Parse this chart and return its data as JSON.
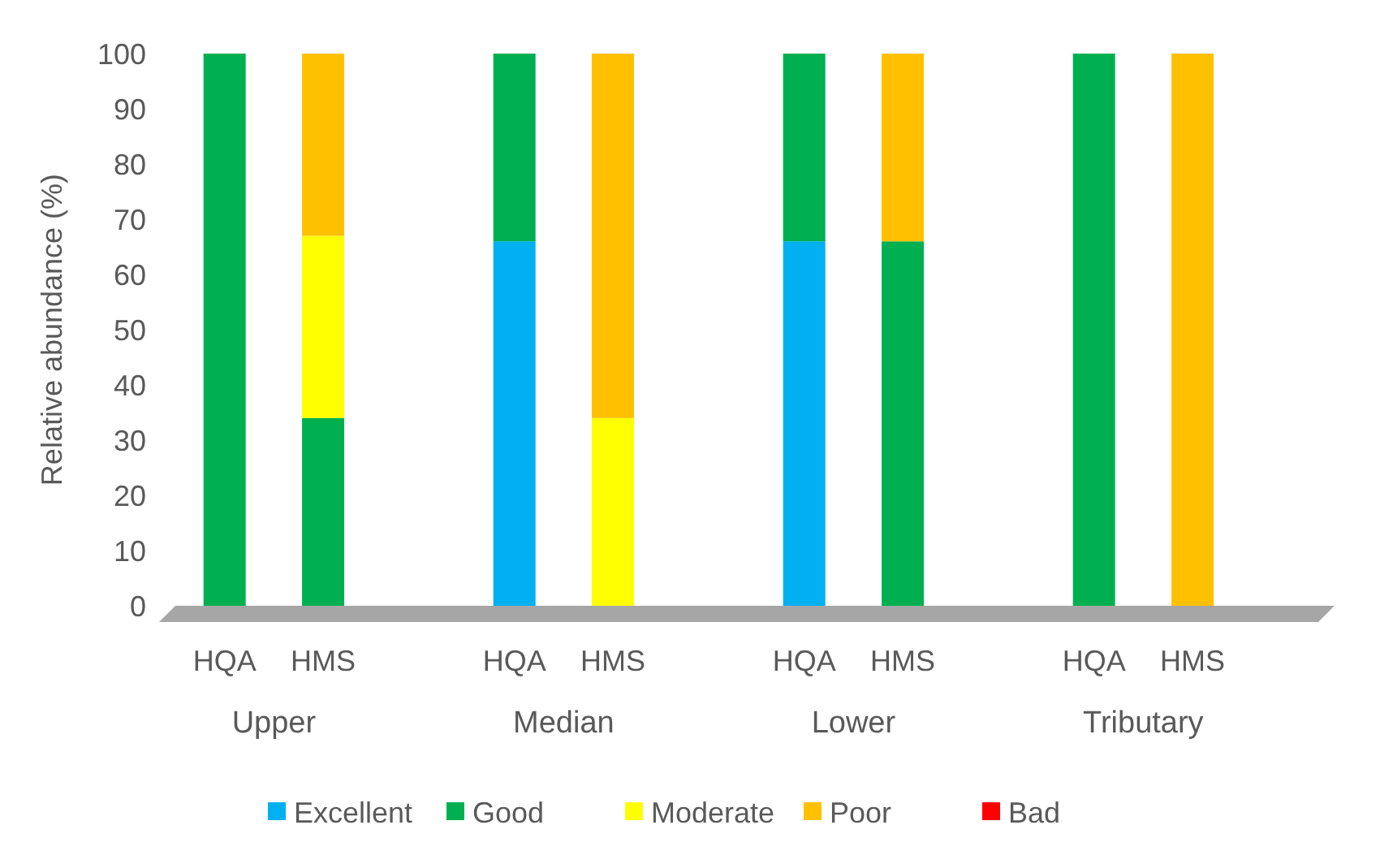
{
  "chart_data": {
    "type": "bar",
    "stacked": true,
    "ylabel": "Relative abundance (%)",
    "categories": [
      "HQA",
      "HMS",
      "HQA",
      "HMS",
      "HQA",
      "HMS",
      "HQA",
      "HMS"
    ],
    "annotations": [
      "Upper",
      "Median",
      "Lower",
      "Tributary"
    ],
    "series": [
      {
        "name": "Excellent",
        "color": "#00b0f0",
        "values": [
          0,
          0,
          66,
          0,
          66,
          0,
          0,
          0
        ]
      },
      {
        "name": "Good",
        "color": "#00b050",
        "values": [
          100,
          34,
          34,
          0,
          34,
          66,
          100,
          0
        ]
      },
      {
        "name": "Moderate",
        "color": "#ffff00",
        "values": [
          0,
          33,
          0,
          34,
          0,
          0,
          0,
          0
        ]
      },
      {
        "name": "Poor",
        "color": "#ffc000",
        "values": [
          0,
          33,
          0,
          66,
          0,
          34,
          0,
          100
        ]
      },
      {
        "name": "Bad",
        "color": "#ff0000",
        "values": [
          0,
          0,
          0,
          0,
          0,
          0,
          0,
          0
        ]
      }
    ],
    "ylim": [
      0,
      100
    ],
    "yticks": [
      0,
      10,
      20,
      30,
      40,
      50,
      60,
      70,
      80,
      90,
      100
    ],
    "grid": false,
    "legend": "bottom"
  }
}
